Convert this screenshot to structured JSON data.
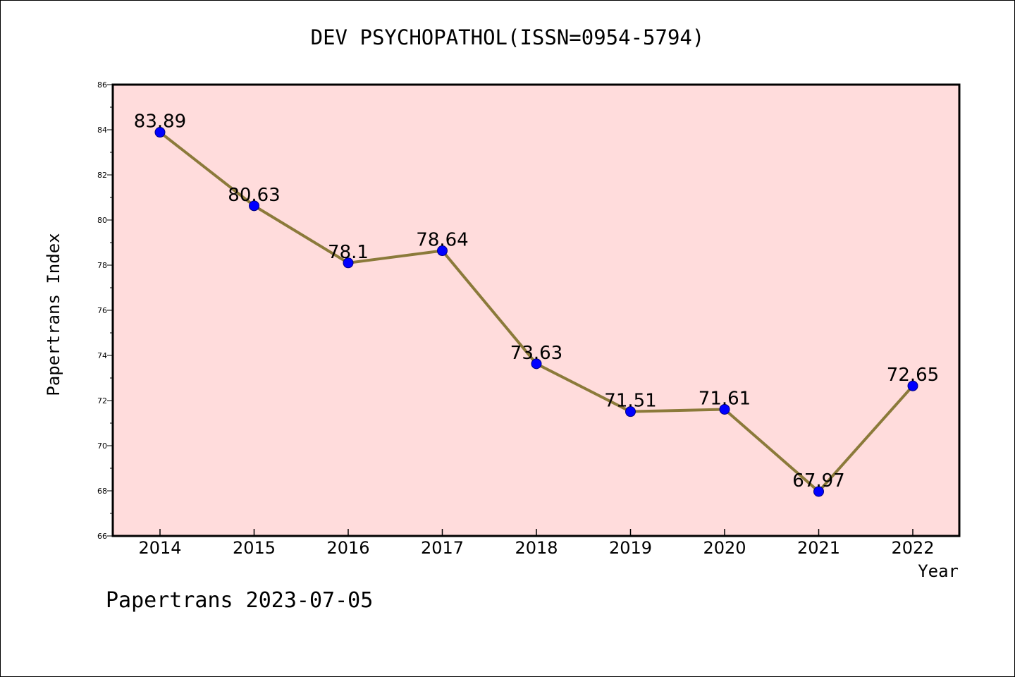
{
  "chart_data": {
    "type": "line",
    "title": "DEV PSYCHOPATHOL(ISSN=0954-5794)",
    "xlabel": "Year",
    "ylabel": "Papertrans Index",
    "categories": [
      "2014",
      "2015",
      "2016",
      "2017",
      "2018",
      "2019",
      "2020",
      "2021",
      "2022"
    ],
    "series": [
      {
        "values": [
          83.89,
          80.63,
          78.1,
          78.64,
          73.63,
          71.51,
          71.61,
          67.97,
          72.65
        ],
        "data_labels": [
          "83.89",
          "80.63",
          "78.1",
          "78.64",
          "73.63",
          "71.51",
          "71.61",
          "67.97",
          "72.65"
        ]
      }
    ],
    "ylim": [
      66,
      86
    ],
    "yticks": [
      66,
      68,
      70,
      72,
      74,
      76,
      78,
      80,
      82,
      84,
      86
    ],
    "grid": false,
    "colors": {
      "plot_background": "#ffdcdc",
      "line": "#8b7a3a",
      "marker": "#0000ff"
    }
  },
  "footer": "Papertrans 2023-07-05"
}
